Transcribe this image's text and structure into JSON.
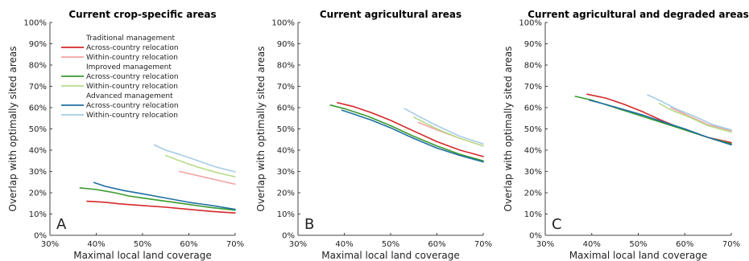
{
  "figure": {
    "ylabel": "Overlap with optimally sited areas",
    "xlabel": "Maximal local land coverage"
  },
  "legend": {
    "placement": "top-left of panel A",
    "groups": [
      {
        "heading": "Traditional management",
        "entries": [
          {
            "label": "Across-country relocation",
            "series": "trad_across"
          },
          {
            "label": "Within-country relocation",
            "series": "trad_within"
          }
        ]
      },
      {
        "heading": "Improved management",
        "entries": [
          {
            "label": "Across-country relocation",
            "series": "imp_across"
          },
          {
            "label": "Within-country relocation",
            "series": "imp_within"
          }
        ]
      },
      {
        "heading": "Advanced management",
        "entries": [
          {
            "label": "Across-country relocation",
            "series": "adv_across"
          },
          {
            "label": "Within-country relocation",
            "series": "adv_within"
          }
        ]
      }
    ]
  },
  "colors": {
    "trad_across": "#d62728",
    "trad_within": "#f4a3a3",
    "imp_across": "#3a9a2e",
    "imp_within": "#b8dc8a",
    "adv_across": "#1f6fa3",
    "adv_within": "#a6cde6",
    "axis": "#444444",
    "text": "#222222"
  },
  "chart_data": [
    {
      "type": "line",
      "panel_letter": "A",
      "title": "Current crop-specific areas",
      "xlabel": "Maximal local land coverage",
      "ylabel": "Overlap with optimally sited areas",
      "xlim": [
        30,
        70
      ],
      "ylim": [
        0,
        100
      ],
      "xticks": [
        "30%",
        "40%",
        "50%",
        "60%",
        "70%"
      ],
      "yticks": [
        "0%",
        "10%",
        "20%",
        "30%",
        "40%",
        "50%",
        "60%",
        "70%",
        "80%",
        "90%",
        "100%"
      ],
      "grid": false,
      "series": [
        {
          "key": "trad_across",
          "x": [
            38,
            42,
            45,
            50,
            55,
            60,
            65,
            70
          ],
          "y": [
            16,
            15.5,
            14.8,
            14,
            13.2,
            12.2,
            11.2,
            10.5
          ]
        },
        {
          "key": "trad_within",
          "x": [
            58,
            62,
            66,
            70
          ],
          "y": [
            30,
            28,
            26,
            24
          ]
        },
        {
          "key": "imp_across",
          "x": [
            36.5,
            40,
            44,
            47,
            50,
            55,
            60,
            65,
            70
          ],
          "y": [
            22.3,
            21.5,
            20,
            18.5,
            17.5,
            16,
            14.5,
            13,
            11.8
          ]
        },
        {
          "key": "imp_within",
          "x": [
            55,
            58,
            62,
            66,
            70
          ],
          "y": [
            37.5,
            35,
            32,
            29.5,
            27.5
          ]
        },
        {
          "key": "adv_across",
          "x": [
            39.5,
            42,
            46,
            50,
            55,
            60,
            65,
            70
          ],
          "y": [
            24.8,
            23,
            21,
            19.5,
            17.5,
            15.5,
            14,
            12.2
          ]
        },
        {
          "key": "adv_within",
          "x": [
            52.5,
            55,
            58,
            62,
            66,
            70
          ],
          "y": [
            42.5,
            40,
            38,
            35,
            32,
            29.8
          ]
        }
      ]
    },
    {
      "type": "line",
      "panel_letter": "B",
      "title": "Current agricultural areas",
      "xlabel": "Maximal local land coverage",
      "ylabel": "Overlap with optimally sited areas",
      "xlim": [
        30,
        70
      ],
      "ylim": [
        0,
        100
      ],
      "xticks": [
        "30%",
        "40%",
        "50%",
        "60%",
        "70%"
      ],
      "yticks": [
        "0%",
        "10%",
        "20%",
        "30%",
        "40%",
        "50%",
        "60%",
        "70%",
        "80%",
        "90%",
        "100%"
      ],
      "grid": false,
      "series": [
        {
          "key": "trad_across",
          "x": [
            38.5,
            42,
            46,
            50,
            55,
            60,
            65,
            70
          ],
          "y": [
            62.3,
            60.5,
            57.5,
            54,
            49,
            44,
            40,
            37
          ]
        },
        {
          "key": "trad_within",
          "x": [
            56,
            60,
            65,
            70
          ],
          "y": [
            53,
            49.5,
            45.5,
            42
          ]
        },
        {
          "key": "imp_across",
          "x": [
            37,
            40,
            45,
            50,
            55,
            60,
            65,
            70
          ],
          "y": [
            61.2,
            59.5,
            56,
            51.5,
            46.5,
            42,
            38,
            35
          ]
        },
        {
          "key": "imp_within",
          "x": [
            55,
            60,
            65,
            70
          ],
          "y": [
            55.5,
            50,
            45.5,
            42
          ]
        },
        {
          "key": "adv_across",
          "x": [
            39.5,
            42,
            46,
            50,
            55,
            60,
            65,
            70
          ],
          "y": [
            58.8,
            57,
            54,
            50.5,
            45.5,
            41,
            37.5,
            34.5
          ]
        },
        {
          "key": "adv_within",
          "x": [
            53,
            56,
            60,
            65,
            70
          ],
          "y": [
            59.5,
            56,
            51.5,
            46.5,
            43
          ]
        }
      ]
    },
    {
      "type": "line",
      "panel_letter": "C",
      "title": "Current agricultural and degraded areas",
      "xlabel": "Maximal local land coverage",
      "ylabel": "Overlap with optimally sited areas",
      "xlim": [
        30,
        70
      ],
      "ylim": [
        0,
        100
      ],
      "xticks": [
        "30%",
        "40%",
        "50%",
        "60%",
        "70%"
      ],
      "yticks": [
        "0%",
        "10%",
        "20%",
        "30%",
        "40%",
        "50%",
        "60%",
        "70%",
        "80%",
        "90%",
        "100%"
      ],
      "grid": false,
      "series": [
        {
          "key": "trad_across",
          "x": [
            39,
            43,
            47,
            51,
            55,
            60,
            65,
            70
          ],
          "y": [
            66.3,
            64.5,
            61.5,
            58,
            54,
            49.5,
            46,
            43.5
          ]
        },
        {
          "key": "trad_within",
          "x": [
            57,
            61,
            65,
            70
          ],
          "y": [
            60,
            56,
            52,
            49
          ]
        },
        {
          "key": "imp_across",
          "x": [
            36.5,
            40,
            45,
            50,
            55,
            60,
            65,
            70
          ],
          "y": [
            65.3,
            63.5,
            60,
            56.5,
            53,
            49.5,
            46,
            43
          ]
        },
        {
          "key": "imp_within",
          "x": [
            54.5,
            57,
            61,
            65,
            70
          ],
          "y": [
            62,
            59,
            55.5,
            51.5,
            48.5
          ]
        },
        {
          "key": "adv_across",
          "x": [
            39.5,
            43,
            47,
            51,
            55,
            60,
            65,
            70
          ],
          "y": [
            63.5,
            61.5,
            59,
            56.5,
            53.5,
            50,
            46,
            42.5
          ]
        },
        {
          "key": "adv_within",
          "x": [
            52,
            55,
            58,
            62,
            66,
            70
          ],
          "y": [
            66,
            63,
            59.5,
            56,
            52,
            49.5
          ]
        }
      ]
    }
  ]
}
